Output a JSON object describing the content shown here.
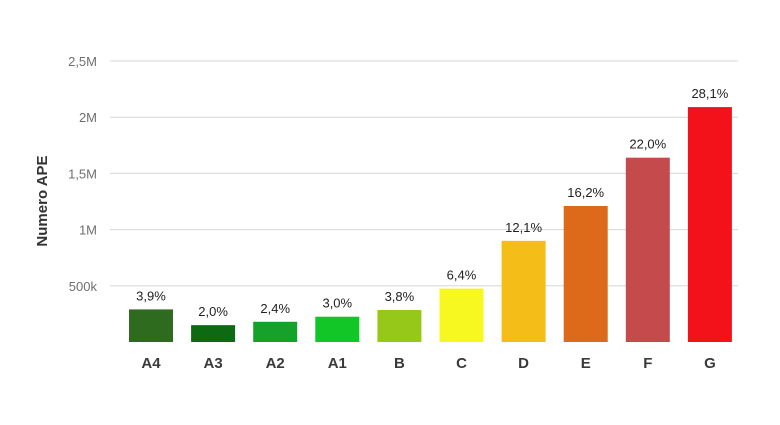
{
  "chart_data": {
    "type": "bar",
    "title": "",
    "xlabel": "",
    "ylabel": "Numero APE",
    "ylim": [
      0,
      2500000
    ],
    "grid": true,
    "y_ticks": [
      {
        "value": 500000,
        "label": "500k"
      },
      {
        "value": 1000000,
        "label": "1M"
      },
      {
        "value": 1500000,
        "label": "1,5M"
      },
      {
        "value": 2000000,
        "label": "2M"
      },
      {
        "value": 2500000,
        "label": "2,5M"
      }
    ],
    "categories": [
      "A4",
      "A3",
      "A2",
      "A1",
      "B",
      "C",
      "D",
      "E",
      "F",
      "G"
    ],
    "values": [
      290000,
      150000,
      180000,
      225000,
      285000,
      475000,
      900000,
      1210000,
      1640000,
      2090000
    ],
    "data_labels": [
      "3,9%",
      "2,0%",
      "2,4%",
      "3,0%",
      "3,8%",
      "6,4%",
      "12,1%",
      "16,2%",
      "22,0%",
      "28,1%"
    ],
    "colors": [
      "#2e6b1f",
      "#0e6a12",
      "#15a12a",
      "#12c628",
      "#96c81a",
      "#f6f81f",
      "#f5bd17",
      "#dd6a1a",
      "#c54a4c",
      "#f3121a"
    ]
  }
}
